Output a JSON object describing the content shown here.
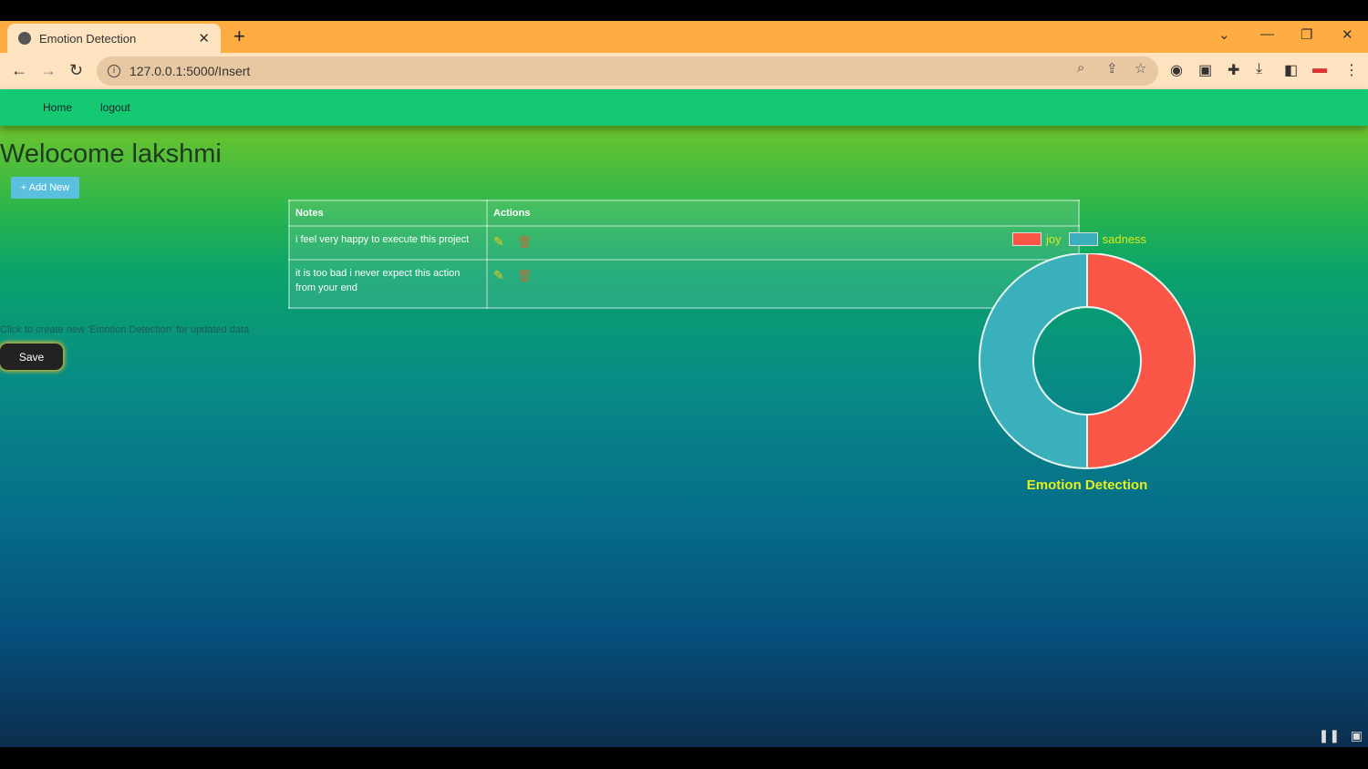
{
  "browser": {
    "tab_title": "Emotion Detection",
    "url": "127.0.0.1:5000/Insert"
  },
  "nav": {
    "home": "Home",
    "logout": "logout"
  },
  "welcome": "Welocome lakshmi",
  "add_new": "+ Add New",
  "table": {
    "headers": [
      "Notes",
      "Actions"
    ],
    "rows": [
      {
        "note": "i feel very happy to execute this project"
      },
      {
        "note": "it is too bad i never expect this action from your end"
      }
    ]
  },
  "hint": "Click to create new 'Emotion Detection' for updated data",
  "save": "Save",
  "chart_data": {
    "type": "pie",
    "variant": "doughnut",
    "title": "Emotion Detection",
    "legend_position": "top",
    "categories": [
      "joy",
      "sadness"
    ],
    "values": [
      1,
      1
    ],
    "colors": [
      "#fa5647",
      "#3ab0bd"
    ]
  }
}
